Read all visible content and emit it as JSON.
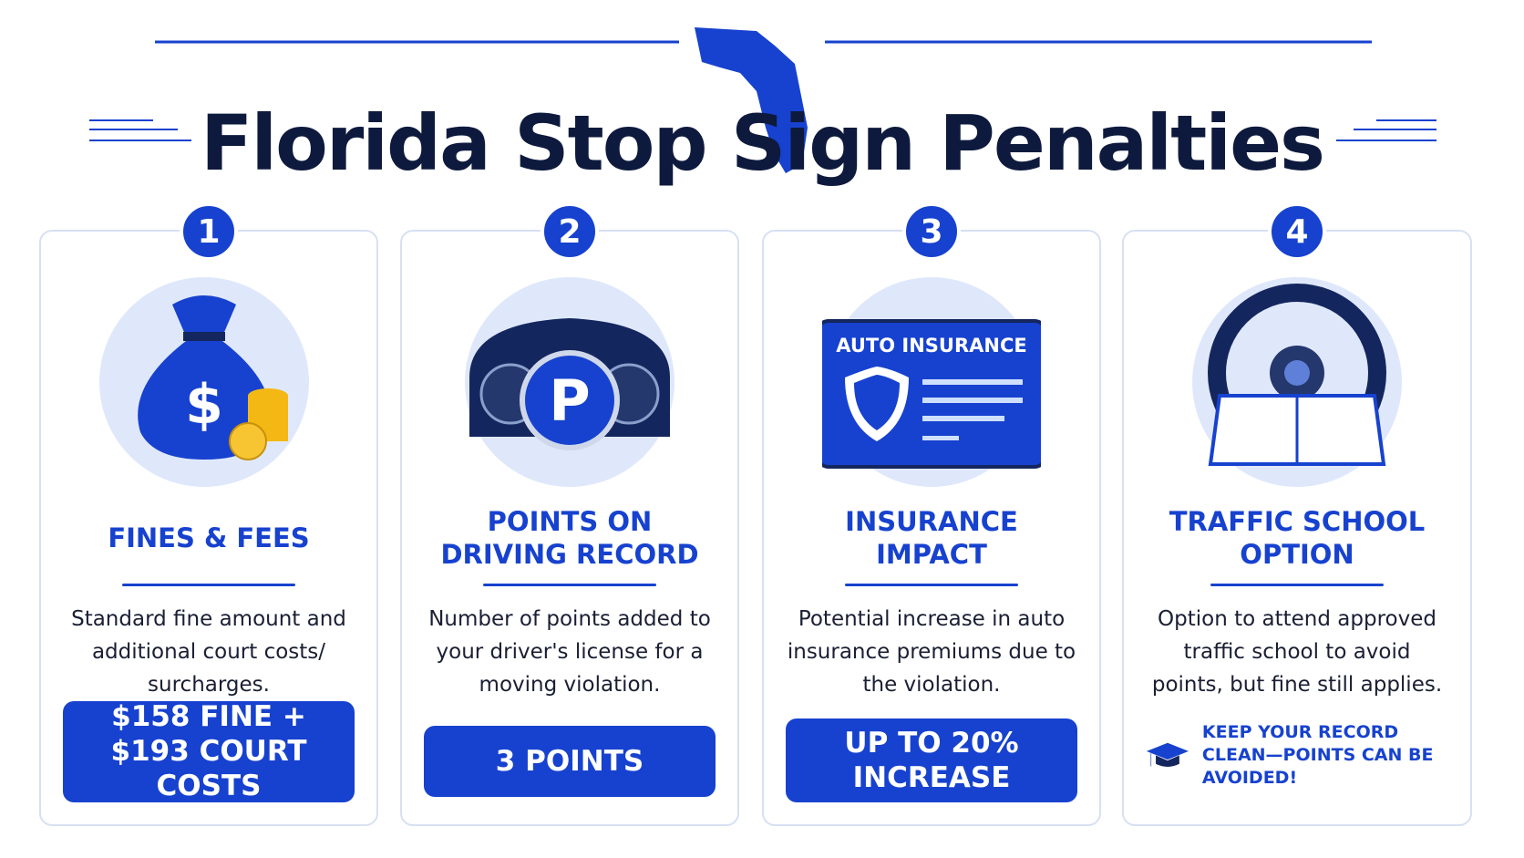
{
  "title": "Florida Stop Sign Penalties",
  "cards": [
    {
      "number": "1",
      "heading": "FINES & FEES",
      "description": "Standard fine amount and additional court costs/ surcharges.",
      "badge": "$158 FINE + $193 COURT COSTS"
    },
    {
      "number": "2",
      "heading": "POINTS ON DRIVING RECORD",
      "description": "Number of points added to your driver's license for a moving violation.",
      "badge": "3 POINTS"
    },
    {
      "number": "3",
      "heading": "INSURANCE IMPACT",
      "icon_label": "AUTO INSURANCE",
      "description": "Potential increase in auto insurance premiums due to the violation.",
      "badge": "UP TO 20% INCREASE"
    },
    {
      "number": "4",
      "heading": "TRAFFIC SCHOOL OPTION",
      "description": "Option to attend approved traffic school to avoid points, but fine still applies.",
      "note": "KEEP YOUR RECORD CLEAN—POINTS CAN BE AVOIDED!"
    }
  ]
}
